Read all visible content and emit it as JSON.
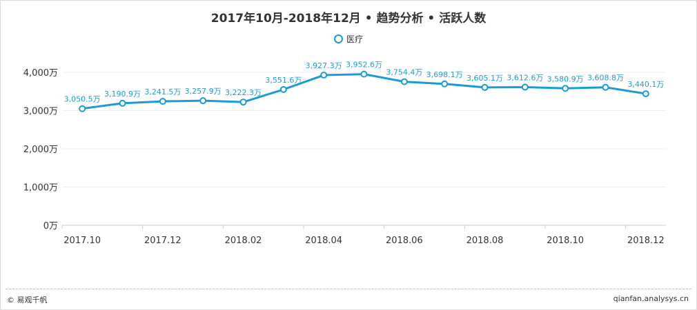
{
  "title": "2017年10月-2018年12月 • 趋势分析 • 活跃人数",
  "legend": {
    "label": "医疗"
  },
  "footer": {
    "left": "© 易观千帆",
    "right": "qianfan.analysys.cn"
  },
  "colors": {
    "series": "#1a9bd7",
    "grid": "#eeeeee",
    "axis": "#cccccc"
  },
  "chart_data": {
    "type": "line",
    "title": "2017年10月-2018年12月 • 趋势分析 • 活跃人数",
    "xlabel": "",
    "ylabel": "",
    "ylim": [
      0,
      4000
    ],
    "yticks": [
      "0万",
      "1,000万",
      "2,000万",
      "3,000万",
      "4,000万"
    ],
    "ytick_values": [
      0,
      1000,
      2000,
      3000,
      4000
    ],
    "categories": [
      "2017.10",
      "2017.11",
      "2017.12",
      "2018.01",
      "2018.02",
      "2018.03",
      "2018.04",
      "2018.05",
      "2018.06",
      "2018.07",
      "2018.08",
      "2018.09",
      "2018.10",
      "2018.11",
      "2018.12"
    ],
    "xtick_labels": [
      "2017.10",
      "2017.12",
      "2018.02",
      "2018.04",
      "2018.06",
      "2018.08",
      "2018.10",
      "2018.12"
    ],
    "series": [
      {
        "name": "医疗",
        "values": [
          3050.5,
          3190.9,
          3241.5,
          3257.9,
          3222.3,
          3551.6,
          3927.3,
          3952.6,
          3754.4,
          3698.1,
          3605.1,
          3612.6,
          3580.9,
          3608.8,
          3440.1
        ],
        "labels": [
          "3,050.5万",
          "3,190.9万",
          "3,241.5万",
          "3,257.9万",
          "3,222.3万",
          "3,551.6万",
          "3,927.3万",
          "3,952.6万",
          "3,754.4万",
          "3,698.1万",
          "3,605.1万",
          "3,612.6万",
          "3,580.9万",
          "3,608.8万",
          "3,440.1万"
        ]
      }
    ],
    "grid": true,
    "legend_position": "top-center"
  }
}
